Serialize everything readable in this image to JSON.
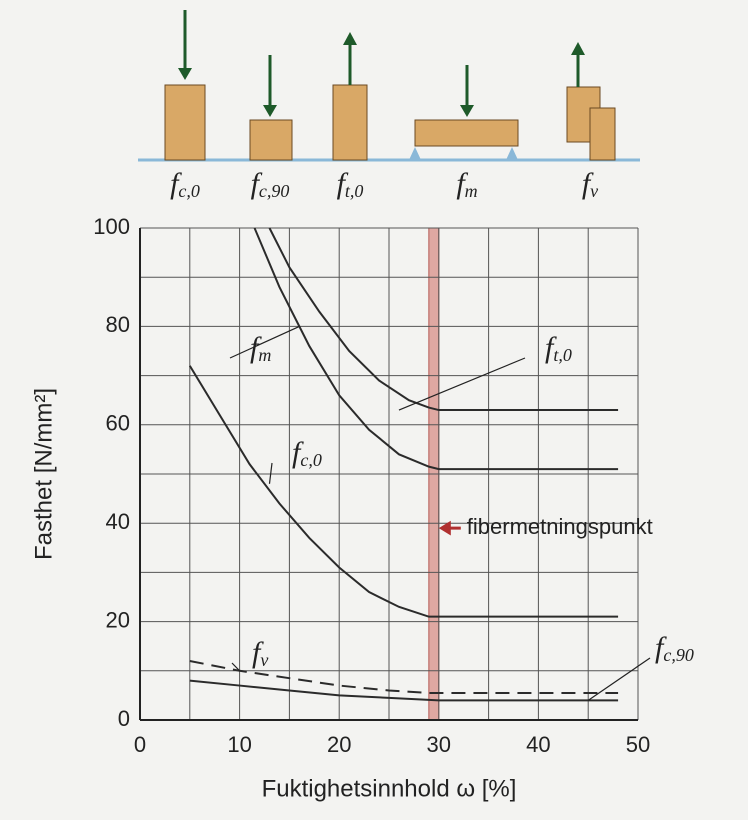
{
  "illustration": {
    "items": [
      {
        "symbol": "f",
        "subscript": "c,0"
      },
      {
        "symbol": "f",
        "subscript": "c,90"
      },
      {
        "symbol": "f",
        "subscript": "t,0"
      },
      {
        "symbol": "f",
        "subscript": "m"
      },
      {
        "symbol": "f",
        "subscript": "v"
      }
    ]
  },
  "chart_data": {
    "type": "line",
    "x_label": "Fuktighetsinnhold ω [%]",
    "y_label": "Fasthet [N/mm²]",
    "xlim": [
      0,
      50
    ],
    "ylim": [
      0,
      100
    ],
    "xticks": [
      0,
      10,
      20,
      30,
      40,
      50
    ],
    "yticks": [
      0,
      20,
      40,
      60,
      80,
      100
    ],
    "grid": true,
    "annotation": {
      "label": "fibermetningspunkt",
      "x": [
        29,
        30
      ]
    },
    "series": [
      {
        "name": "f",
        "subscript": "t,0",
        "color": "#2b2b2b",
        "dashed": false,
        "x": [
          13,
          15,
          18,
          21,
          24,
          27,
          29,
          30,
          48
        ],
        "values": [
          100,
          92,
          83,
          75,
          69,
          65,
          63.5,
          63,
          63
        ]
      },
      {
        "name": "f",
        "subscript": "m",
        "color": "#2b2b2b",
        "dashed": false,
        "x": [
          11.5,
          14,
          17,
          20,
          23,
          26,
          29,
          30,
          48
        ],
        "values": [
          100,
          88,
          76,
          66,
          59,
          54,
          51.5,
          51,
          51
        ]
      },
      {
        "name": "f",
        "subscript": "c,0",
        "color": "#2b2b2b",
        "dashed": false,
        "x": [
          5,
          8,
          11,
          14,
          17,
          20,
          23,
          26,
          29,
          48
        ],
        "values": [
          72,
          62,
          52,
          44,
          37,
          31,
          26,
          23,
          21,
          21
        ]
      },
      {
        "name": "f",
        "subscript": "v",
        "color": "#2b2b2b",
        "dashed": true,
        "x": [
          5,
          10,
          15,
          20,
          25,
          29,
          48
        ],
        "values": [
          12,
          10,
          8.5,
          7,
          6,
          5.5,
          5.5
        ]
      },
      {
        "name": "f",
        "subscript": "c,90",
        "color": "#2b2b2b",
        "dashed": false,
        "x": [
          5,
          10,
          15,
          20,
          25,
          30,
          48
        ],
        "values": [
          8,
          7,
          6,
          5,
          4.5,
          4,
          4
        ]
      }
    ]
  }
}
